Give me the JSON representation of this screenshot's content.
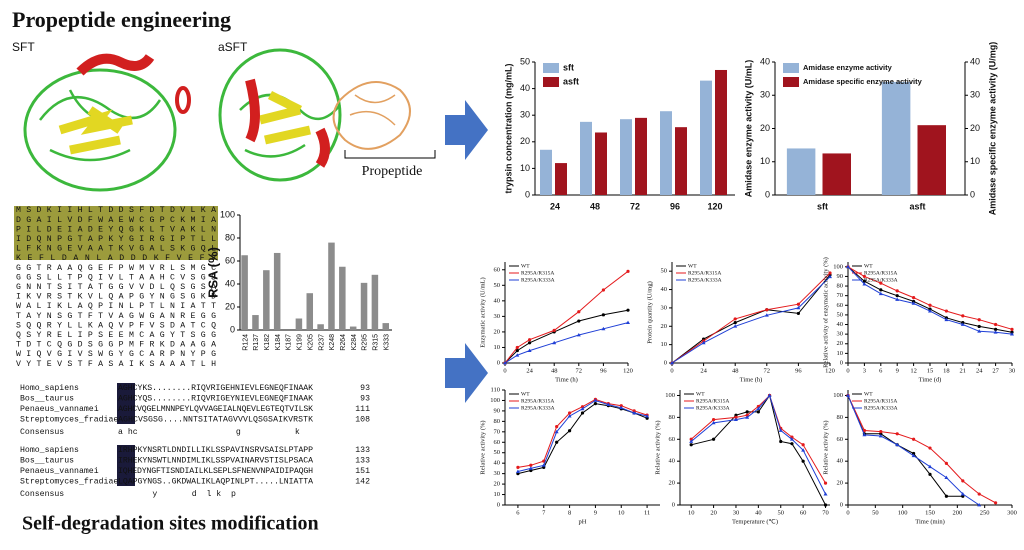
{
  "header": {
    "title": "Propeptide engineering",
    "subtitle": "Self-degradation sites modification"
  },
  "structures": {
    "left": "SFT",
    "right": "aSFT",
    "propeptide": "Propeptide"
  },
  "sequence": [
    "MSDKIIHLTDDSFDTDVLKA",
    "DGAILVDFWAEWCGPCKMIA",
    "PILDEIADEYQGKLTVAKLN",
    "IDQNPGTAPKYGIRGIPTLL",
    "LFKNGEVAATKVGALSKGQL",
    "KEFLDANLADDDKFVEFV",
    "GGTRAAQGEFPWMVRLSMGC",
    "GGSLLTPQIVLTAAHCVSGS",
    "GNNTSITATGGVVDLQSGSA",
    "IKVRSTKVLQAPGYNGSGKD",
    "WALIKLAQPINLPTLNIATT",
    "TAYNSGTFTVAGWGANREGG",
    "SQQRYLLKAQVPFVSDATCQ",
    "QSYRELIPSEEMCAGYTSGG",
    "TDTCQGDSGGPMFRKDAAGA",
    "WIQVGIVSWGYGCARPNYPG",
    "VYTEVSTFASAIKSAAATLH"
  ],
  "alignment": [
    {
      "rows": [
        [
          "Homo_sapiens",
          "AGHCYKS........RIQVRIGEHNIEVLEGNEQFINAAK",
          "93"
        ],
        [
          "Bos__taurus",
          "AGHCYQS........RIQVRIGEYNIEVLEGNEQFINAAK",
          "93"
        ],
        [
          "Penaeus_vannamei",
          "AGHCVQGELMNNPEYLQVVAGEIALNQEVLEGTEQTVILSK",
          "111"
        ],
        [
          "Streptomyces_fradiae",
          "AGHCVSGSG....NNTSITATAGVVVLQSGSAIKVRSTK",
          "108"
        ]
      ],
      "consensus": [
        "Consensus",
        "a hc                    g           k"
      ]
    },
    {
      "rows": [
        [
          "Homo_sapiens",
          "IRHPKYNSRTLDNDILLIKLSSPAVINSRVSAISLPTAPP",
          "133"
        ],
        [
          "Bos__taurus",
          "IRHEKYNSWTLNNDIMLIKLSSPVAINARVSTISLPSACA",
          "133"
        ],
        [
          "Penaeus_vannamei",
          "IQHEDYNGFTISNDIAILKLSEPLSFNENVNPAIDIPAQGH",
          "151"
        ],
        [
          "Streptomyces_fradiae",
          "LQAPGYNGS..GKDWALIKLAQPINLPT.....LNIATTA",
          "142"
        ]
      ],
      "consensus": [
        "Consensus",
        "       y       d  l k  p"
      ]
    }
  ],
  "chart_data": [
    {
      "type": "bar",
      "ylabel": "RSA (%)",
      "categories": [
        "R124",
        "R137",
        "K182",
        "K184",
        "K187",
        "K199",
        "K205",
        "R237",
        "K248",
        "R264",
        "K284",
        "R295",
        "R315",
        "K333"
      ],
      "values": [
        65,
        13,
        52,
        67,
        0,
        10,
        32,
        5,
        76,
        55,
        3,
        41,
        48,
        6
      ],
      "color": "#8c8c8c",
      "ylim": [
        0,
        100
      ],
      "yticks": [
        0,
        20,
        40,
        60,
        80,
        100
      ]
    },
    {
      "type": "bar",
      "ylabel": "trypsin concentration (mg/mL)",
      "categories": [
        "24",
        "48",
        "72",
        "96",
        "120"
      ],
      "series": [
        {
          "name": "sft",
          "color": "#95b3d7",
          "values": [
            17,
            27.5,
            28.5,
            31.5,
            43
          ]
        },
        {
          "name": "asft",
          "color": "#a0141e",
          "values": [
            12,
            23.5,
            29,
            25.5,
            47
          ]
        }
      ],
      "ylim": [
        0,
        50
      ],
      "yticks": [
        0,
        10,
        20,
        30,
        40,
        50
      ]
    },
    {
      "type": "bar",
      "ylabel": "Amidase enzyme activity (U/mL)",
      "y2label": "Amidase specific enzyme activity (U/mg)",
      "categories": [
        "sft",
        "asft"
      ],
      "series": [
        {
          "name": "Amidase enzyme activity",
          "color": "#95b3d7",
          "values": [
            14,
            34
          ]
        },
        {
          "name": "Amidase specific enzyme activity",
          "color": "#a0141e",
          "values": [
            12.5,
            21
          ],
          "axis": "y2"
        }
      ],
      "ylim": [
        0,
        40
      ],
      "yticks": [
        0,
        10,
        20,
        30,
        40
      ],
      "y2lim": [
        0,
        40
      ],
      "y2ticks": [
        0,
        10,
        20,
        30,
        40
      ]
    },
    {
      "type": "line",
      "ylabel": "Enzymatic activity (U/mL)",
      "xlabel": "Time (h)",
      "x": [
        0,
        12,
        24,
        48,
        72,
        96,
        120
      ],
      "series": [
        {
          "name": "WT",
          "color": "#000000",
          "values": [
            0,
            8,
            13,
            20,
            27,
            31,
            34
          ]
        },
        {
          "name": "R295A/R315A",
          "color": "#e41a1c",
          "values": [
            0,
            10,
            15,
            21,
            33,
            47,
            59
          ]
        },
        {
          "name": "R295A/K333A",
          "color": "#1f3fd6",
          "values": [
            0,
            5,
            8,
            13,
            18,
            22,
            26
          ]
        }
      ],
      "xlim": [
        0,
        120
      ],
      "xticks": [
        0,
        24,
        48,
        72,
        96,
        120
      ],
      "ylim": [
        0,
        65
      ],
      "yticks": [
        0,
        10,
        20,
        30,
        40,
        50,
        60
      ]
    },
    {
      "type": "line",
      "ylabel": "Protein quantity (U/mg)",
      "xlabel": "Time (h)",
      "x": [
        0,
        24,
        48,
        72,
        96,
        120
      ],
      "series": [
        {
          "name": "WT",
          "color": "#000000",
          "values": [
            0,
            13,
            22,
            29,
            27,
            48
          ]
        },
        {
          "name": "R295A/R315A",
          "color": "#e41a1c",
          "values": [
            0,
            12,
            24,
            29,
            32,
            49
          ]
        },
        {
          "name": "R295A/K333A",
          "color": "#1f3fd6",
          "values": [
            0,
            11,
            20,
            26,
            30,
            47
          ]
        }
      ],
      "xlim": [
        0,
        120
      ],
      "xticks": [
        0,
        24,
        48,
        72,
        96,
        120
      ],
      "ylim": [
        0,
        55
      ],
      "yticks": [
        0,
        10,
        20,
        30,
        40,
        50
      ]
    },
    {
      "type": "line",
      "ylabel": "Relative activity of enzymatic activity (%)",
      "xlabel": "Time (d)",
      "x": [
        0,
        3,
        6,
        9,
        12,
        15,
        18,
        21,
        24,
        27,
        30
      ],
      "series": [
        {
          "name": "WT",
          "color": "#000000",
          "values": [
            100,
            85,
            76,
            70,
            64,
            56,
            47,
            42,
            38,
            35,
            32
          ]
        },
        {
          "name": "R295A/R315A",
          "color": "#e41a1c",
          "values": [
            100,
            90,
            83,
            75,
            68,
            60,
            54,
            49,
            45,
            40,
            35
          ]
        },
        {
          "name": "R295A/K333A",
          "color": "#1f3fd6",
          "values": [
            100,
            82,
            72,
            66,
            62,
            54,
            45,
            40,
            33,
            32,
            30
          ]
        }
      ],
      "xlim": [
        0,
        30
      ],
      "xticks": [
        0,
        3,
        6,
        9,
        12,
        15,
        18,
        21,
        24,
        27,
        30
      ],
      "ylim": [
        0,
        105
      ],
      "yticks": [
        0,
        10,
        20,
        30,
        40,
        50,
        60,
        70,
        80,
        90,
        100
      ]
    },
    {
      "type": "line",
      "ylabel": "Relative activity (%)",
      "xlabel": "pH",
      "x": [
        6,
        6.5,
        7,
        7.5,
        8,
        8.5,
        9,
        9.5,
        10,
        10.5,
        11
      ],
      "series": [
        {
          "name": "WT",
          "color": "#000000",
          "values": [
            30,
            33,
            36,
            60,
            71,
            88,
            97,
            95,
            92,
            88,
            83
          ]
        },
        {
          "name": "R295A/R315A",
          "color": "#e41a1c",
          "values": [
            36,
            38,
            42,
            75,
            88,
            94,
            101,
            97,
            95,
            90,
            86
          ]
        },
        {
          "name": "R295A/K333A",
          "color": "#1f3fd6",
          "values": [
            32,
            35,
            38,
            70,
            85,
            92,
            100,
            96,
            93,
            88,
            85
          ]
        }
      ],
      "xlim": [
        5.5,
        11.5
      ],
      "xticks": [
        6,
        7,
        8,
        9,
        10,
        11
      ],
      "ylim": [
        0,
        110
      ],
      "yticks": [
        0,
        10,
        20,
        30,
        40,
        50,
        60,
        70,
        80,
        90,
        100,
        110
      ]
    },
    {
      "type": "line",
      "ylabel": "Relative activity (%)",
      "xlabel": "Temperature (℃)",
      "x": [
        10,
        20,
        30,
        35,
        40,
        45,
        50,
        55,
        60,
        70
      ],
      "series": [
        {
          "name": "WT",
          "color": "#000000",
          "values": [
            55,
            60,
            82,
            85,
            85,
            100,
            58,
            56,
            40,
            0
          ]
        },
        {
          "name": "R295A/R315A",
          "color": "#e41a1c",
          "values": [
            60,
            78,
            80,
            82,
            90,
            100,
            70,
            62,
            55,
            20
          ]
        },
        {
          "name": "R295A/K333A",
          "color": "#1f3fd6",
          "values": [
            58,
            75,
            78,
            80,
            88,
            100,
            68,
            60,
            50,
            10
          ]
        }
      ],
      "xlim": [
        5,
        72
      ],
      "xticks": [
        10,
        20,
        30,
        40,
        50,
        60,
        70
      ],
      "ylim": [
        0,
        105
      ],
      "yticks": [
        0,
        20,
        40,
        60,
        80,
        100
      ]
    },
    {
      "type": "line",
      "ylabel": "Relative activity (%)",
      "xlabel": "Time (min)",
      "x": [
        0,
        30,
        60,
        90,
        120,
        150,
        180,
        210,
        240,
        270,
        300
      ],
      "series": [
        {
          "name": "WT",
          "color": "#000000",
          "values": [
            100,
            65,
            65,
            55,
            47,
            28,
            8,
            8,
            null,
            null,
            null
          ]
        },
        {
          "name": "R295A/R315A",
          "color": "#e41a1c",
          "values": [
            100,
            68,
            67,
            65,
            60,
            52,
            38,
            22,
            10,
            2,
            null
          ]
        },
        {
          "name": "R295A/K333A",
          "color": "#1f3fd6",
          "values": [
            100,
            64,
            63,
            55,
            45,
            35,
            25,
            10,
            0,
            null,
            null
          ]
        }
      ],
      "xlim": [
        0,
        300
      ],
      "xticks": [
        0,
        50,
        100,
        150,
        200,
        250,
        300
      ],
      "ylim": [
        0,
        105
      ],
      "yticks": [
        0,
        20,
        40,
        60,
        80,
        100
      ]
    }
  ]
}
